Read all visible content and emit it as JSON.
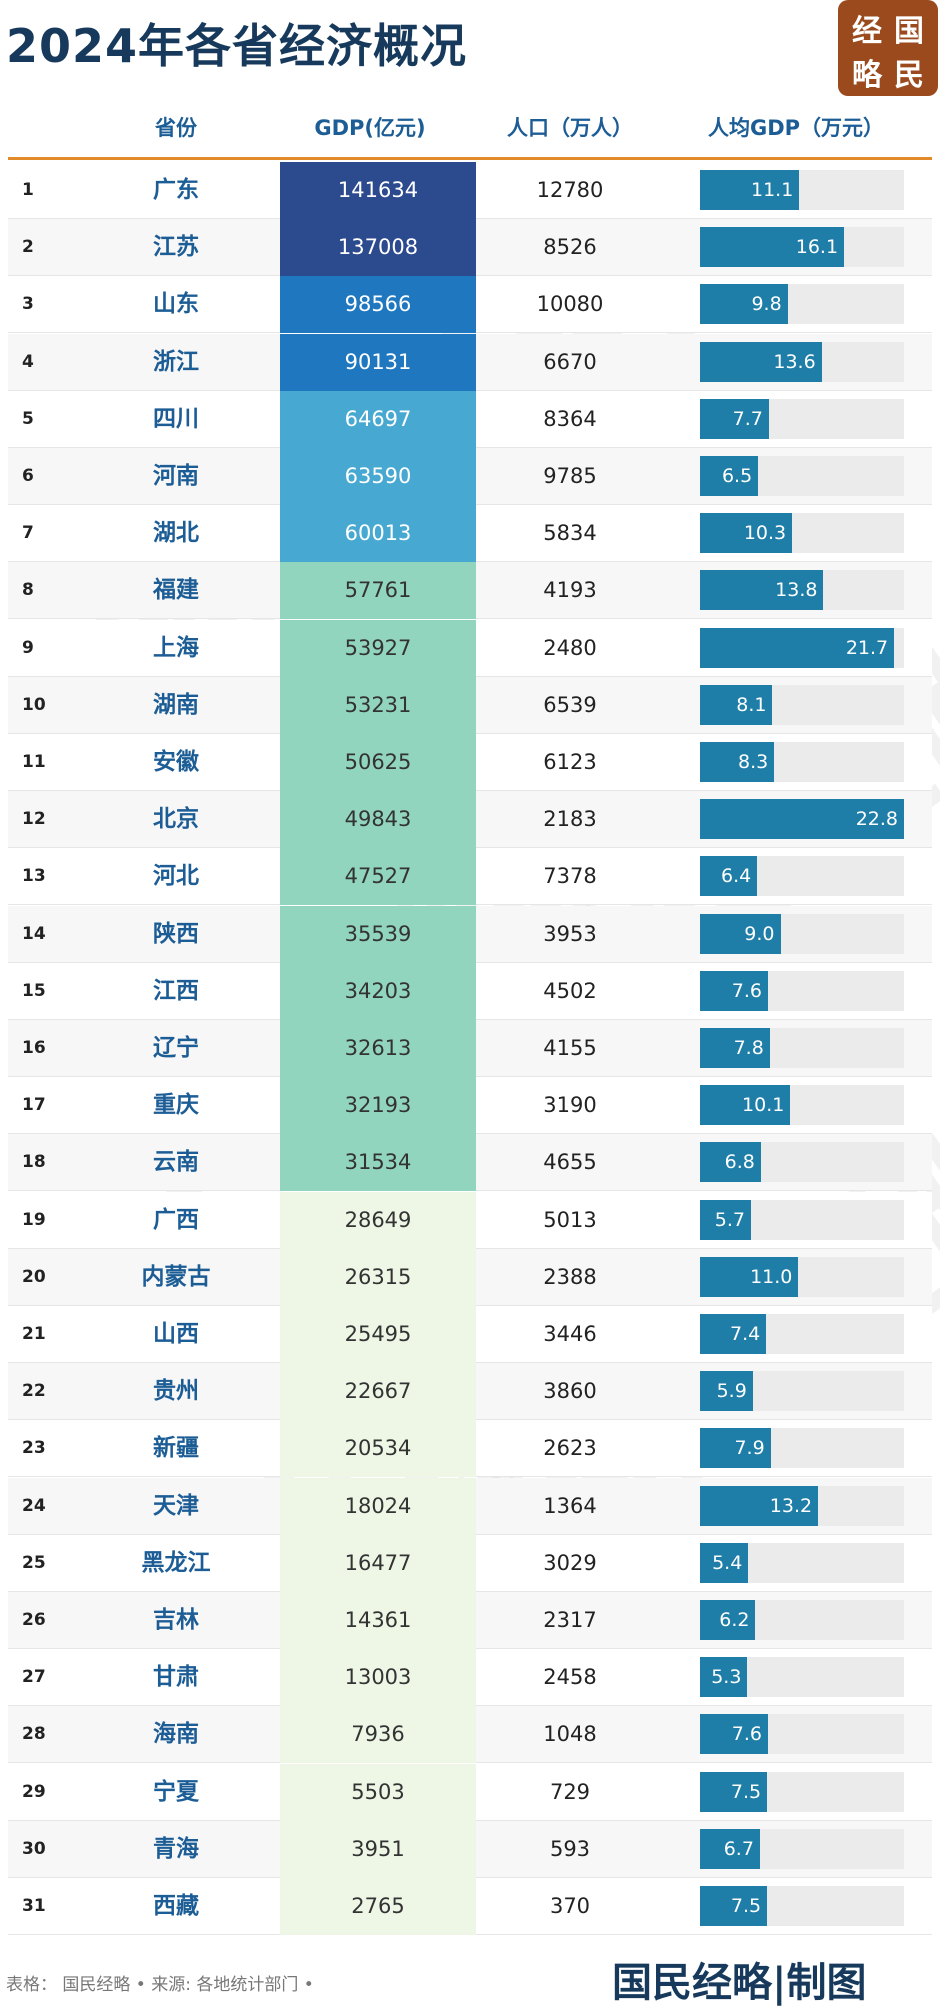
{
  "header": {
    "title": "2024年各省经济概况",
    "logo": [
      "经",
      "国",
      "略",
      "民"
    ]
  },
  "table": {
    "columns": [
      "省份",
      "GDP(亿元)",
      "人口（万人）",
      "人均GDP（万元）"
    ],
    "rows": [
      {
        "rank": 1,
        "province": "广东",
        "gdp": 141634,
        "population": 12780,
        "gdp_per_capita": 11.1,
        "gdp_color": "#2c4a8e"
      },
      {
        "rank": 2,
        "province": "江苏",
        "gdp": 137008,
        "population": 8526,
        "gdp_per_capita": 16.1,
        "gdp_color": "#2c4a8e"
      },
      {
        "rank": 3,
        "province": "山东",
        "gdp": 98566,
        "population": 10080,
        "gdp_per_capita": 9.8,
        "gdp_color": "#1f78bf"
      },
      {
        "rank": 4,
        "province": "浙江",
        "gdp": 90131,
        "population": 6670,
        "gdp_per_capita": 13.6,
        "gdp_color": "#1f78bf"
      },
      {
        "rank": 5,
        "province": "四川",
        "gdp": 64697,
        "population": 8364,
        "gdp_per_capita": 7.7,
        "gdp_color": "#47a9d1"
      },
      {
        "rank": 6,
        "province": "河南",
        "gdp": 63590,
        "population": 9785,
        "gdp_per_capita": 6.5,
        "gdp_color": "#47a9d1"
      },
      {
        "rank": 7,
        "province": "湖北",
        "gdp": 60013,
        "population": 5834,
        "gdp_per_capita": 10.3,
        "gdp_color": "#47a9d1"
      },
      {
        "rank": 8,
        "province": "福建",
        "gdp": 57761,
        "population": 4193,
        "gdp_per_capita": 13.8,
        "gdp_color": "#92d5be"
      },
      {
        "rank": 9,
        "province": "上海",
        "gdp": 53927,
        "population": 2480,
        "gdp_per_capita": 21.7,
        "gdp_color": "#92d5be"
      },
      {
        "rank": 10,
        "province": "湖南",
        "gdp": 53231,
        "population": 6539,
        "gdp_per_capita": 8.1,
        "gdp_color": "#92d5be"
      },
      {
        "rank": 11,
        "province": "安徽",
        "gdp": 50625,
        "population": 6123,
        "gdp_per_capita": 8.3,
        "gdp_color": "#92d5be"
      },
      {
        "rank": 12,
        "province": "北京",
        "gdp": 49843,
        "population": 2183,
        "gdp_per_capita": 22.8,
        "gdp_color": "#92d5be"
      },
      {
        "rank": 13,
        "province": "河北",
        "gdp": 47527,
        "population": 7378,
        "gdp_per_capita": 6.4,
        "gdp_color": "#92d5be"
      },
      {
        "rank": 14,
        "province": "陕西",
        "gdp": 35539,
        "population": 3953,
        "gdp_per_capita": 9.0,
        "gdp_per_capita_label": "9.0",
        "gdp_color": "#92d5be"
      },
      {
        "rank": 15,
        "province": "江西",
        "gdp": 34203,
        "population": 4502,
        "gdp_per_capita": 7.6,
        "gdp_color": "#92d5be"
      },
      {
        "rank": 16,
        "province": "辽宁",
        "gdp": 32613,
        "population": 4155,
        "gdp_per_capita": 7.8,
        "gdp_color": "#92d5be"
      },
      {
        "rank": 17,
        "province": "重庆",
        "gdp": 32193,
        "population": 3190,
        "gdp_per_capita": 10.1,
        "gdp_color": "#92d5be"
      },
      {
        "rank": 18,
        "province": "云南",
        "gdp": 31534,
        "population": 4655,
        "gdp_per_capita": 6.8,
        "gdp_color": "#92d5be"
      },
      {
        "rank": 19,
        "province": "广西",
        "gdp": 28649,
        "population": 5013,
        "gdp_per_capita": 5.7,
        "gdp_color": "#eef7e6"
      },
      {
        "rank": 20,
        "province": "内蒙古",
        "gdp": 26315,
        "population": 2388,
        "gdp_per_capita": 11.0,
        "gdp_per_capita_label": "11.0",
        "gdp_color": "#eef7e6"
      },
      {
        "rank": 21,
        "province": "山西",
        "gdp": 25495,
        "population": 3446,
        "gdp_per_capita": 7.4,
        "gdp_color": "#eef7e6"
      },
      {
        "rank": 22,
        "province": "贵州",
        "gdp": 22667,
        "population": 3860,
        "gdp_per_capita": 5.9,
        "gdp_color": "#eef7e6"
      },
      {
        "rank": 23,
        "province": "新疆",
        "gdp": 20534,
        "population": 2623,
        "gdp_per_capita": 7.9,
        "gdp_color": "#eef7e6"
      },
      {
        "rank": 24,
        "province": "天津",
        "gdp": 18024,
        "population": 1364,
        "gdp_per_capita": 13.2,
        "gdp_color": "#eef7e6"
      },
      {
        "rank": 25,
        "province": "黑龙江",
        "gdp": 16477,
        "population": 3029,
        "gdp_per_capita": 5.4,
        "gdp_color": "#eef7e6"
      },
      {
        "rank": 26,
        "province": "吉林",
        "gdp": 14361,
        "population": 2317,
        "gdp_per_capita": 6.2,
        "gdp_color": "#eef7e6"
      },
      {
        "rank": 27,
        "province": "甘肃",
        "gdp": 13003,
        "population": 2458,
        "gdp_per_capita": 5.3,
        "gdp_color": "#eef7e6"
      },
      {
        "rank": 28,
        "province": "海南",
        "gdp": 7936,
        "population": 1048,
        "gdp_per_capita": 7.6,
        "gdp_color": "#eef7e6"
      },
      {
        "rank": 29,
        "province": "宁夏",
        "gdp": 5503,
        "population": 729,
        "gdp_per_capita": 7.5,
        "gdp_color": "#eef7e6"
      },
      {
        "rank": 30,
        "province": "青海",
        "gdp": 3951,
        "population": 593,
        "gdp_per_capita": 6.7,
        "gdp_color": "#eef7e6"
      },
      {
        "rank": 31,
        "province": "西藏",
        "gdp": 2765,
        "population": 370,
        "gdp_per_capita": 7.5,
        "gdp_color": "#eef7e6"
      }
    ]
  },
  "watermark": "国民经略",
  "footer": {
    "source": "表格： 国民经略 • 来源: 各地统计部门 •",
    "credit": "国民经略|制图"
  }
}
